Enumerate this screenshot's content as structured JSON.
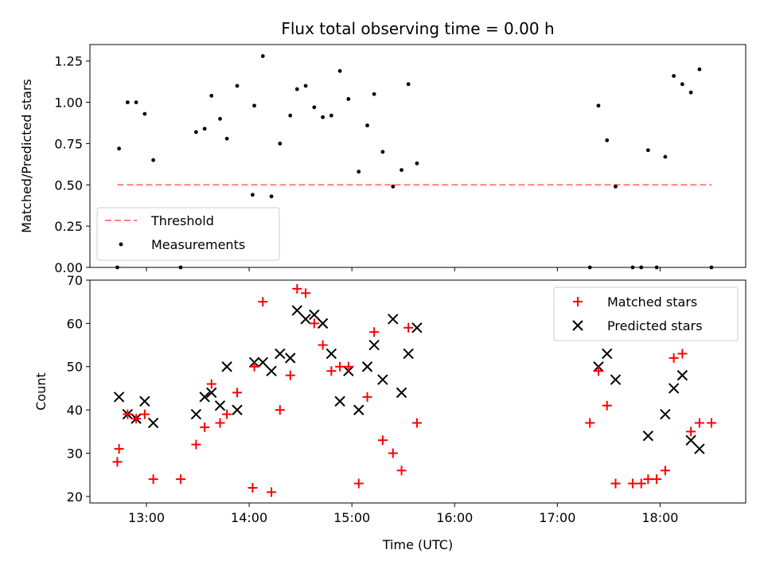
{
  "chart_data": [
    {
      "type": "scatter",
      "title": "Flux total observing time = 0.00 h",
      "ylabel": "Matched/Predicted stars",
      "xlabel": "",
      "xlim": [
        "12:27",
        "18:50"
      ],
      "ylim": [
        0,
        1.35
      ],
      "yticks": [
        "0.00",
        "0.25",
        "0.50",
        "0.75",
        "1.00",
        "1.25"
      ],
      "xticks": [
        "13:00",
        "14:00",
        "15:00",
        "16:00",
        "17:00",
        "18:00"
      ],
      "legend_position": "lower-left",
      "threshold": {
        "name": "Threshold",
        "value": 0.5,
        "x_range": [
          "12:43",
          "18:30"
        ],
        "color": "#ff7f7f",
        "style": "dashed"
      },
      "series": [
        {
          "name": "Measurements",
          "color": "#000000",
          "marker": "dot",
          "points": [
            [
              "12:43",
              0.0
            ],
            [
              "12:44",
              0.72
            ],
            [
              "12:49",
              1.0
            ],
            [
              "12:54",
              1.0
            ],
            [
              "12:59",
              0.93
            ],
            [
              "13:04",
              0.65
            ],
            [
              "13:20",
              0.0
            ],
            [
              "13:29",
              0.82
            ],
            [
              "13:34",
              0.84
            ],
            [
              "13:38",
              1.04
            ],
            [
              "13:43",
              0.9
            ],
            [
              "13:47",
              0.78
            ],
            [
              "13:53",
              1.1
            ],
            [
              "14:02",
              0.44
            ],
            [
              "14:03",
              0.98
            ],
            [
              "14:08",
              1.28
            ],
            [
              "14:13",
              0.43
            ],
            [
              "14:18",
              0.75
            ],
            [
              "14:24",
              0.92
            ],
            [
              "14:28",
              1.08
            ],
            [
              "14:33",
              1.1
            ],
            [
              "14:38",
              0.97
            ],
            [
              "14:43",
              0.91
            ],
            [
              "14:48",
              0.92
            ],
            [
              "14:53",
              1.19
            ],
            [
              "14:58",
              1.02
            ],
            [
              "15:04",
              0.58
            ],
            [
              "15:09",
              0.86
            ],
            [
              "15:13",
              1.05
            ],
            [
              "15:18",
              0.7
            ],
            [
              "15:24",
              0.49
            ],
            [
              "15:29",
              0.59
            ],
            [
              "15:33",
              1.11
            ],
            [
              "15:38",
              0.63
            ],
            [
              "17:19",
              0.0
            ],
            [
              "17:24",
              0.98
            ],
            [
              "17:29",
              0.77
            ],
            [
              "17:34",
              0.49
            ],
            [
              "17:44",
              0.0
            ],
            [
              "17:49",
              0.0
            ],
            [
              "17:53",
              0.71
            ],
            [
              "17:58",
              0.0
            ],
            [
              "18:03",
              0.67
            ],
            [
              "18:08",
              1.16
            ],
            [
              "18:13",
              1.11
            ],
            [
              "18:18",
              1.06
            ],
            [
              "18:23",
              1.2
            ],
            [
              "18:30",
              0.0
            ]
          ]
        }
      ]
    },
    {
      "type": "scatter",
      "title": "",
      "ylabel": "Count",
      "xlabel": "Time (UTC)",
      "xlim": [
        "12:27",
        "18:50"
      ],
      "ylim": [
        18.5,
        70
      ],
      "yticks": [
        "20",
        "30",
        "40",
        "50",
        "60",
        "70"
      ],
      "xticks": [
        "13:00",
        "14:00",
        "15:00",
        "16:00",
        "17:00",
        "18:00"
      ],
      "legend_position": "upper-right",
      "series": [
        {
          "name": "Matched stars",
          "color": "#ff0000",
          "marker": "plus",
          "points": [
            [
              "12:43",
              28
            ],
            [
              "12:44",
              31
            ],
            [
              "12:49",
              39
            ],
            [
              "12:54",
              38
            ],
            [
              "12:59",
              39
            ],
            [
              "13:04",
              24
            ],
            [
              "13:20",
              24
            ],
            [
              "13:29",
              32
            ],
            [
              "13:34",
              36
            ],
            [
              "13:38",
              46
            ],
            [
              "13:43",
              37
            ],
            [
              "13:47",
              39
            ],
            [
              "13:53",
              44
            ],
            [
              "14:02",
              22
            ],
            [
              "14:03",
              50
            ],
            [
              "14:08",
              65
            ],
            [
              "14:13",
              21
            ],
            [
              "14:18",
              40
            ],
            [
              "14:24",
              48
            ],
            [
              "14:28",
              68
            ],
            [
              "14:33",
              67
            ],
            [
              "14:38",
              60
            ],
            [
              "14:43",
              55
            ],
            [
              "14:48",
              49
            ],
            [
              "14:53",
              50
            ],
            [
              "14:58",
              50
            ],
            [
              "15:04",
              23
            ],
            [
              "15:09",
              43
            ],
            [
              "15:13",
              58
            ],
            [
              "15:18",
              33
            ],
            [
              "15:24",
              30
            ],
            [
              "15:29",
              26
            ],
            [
              "15:33",
              59
            ],
            [
              "15:38",
              37
            ],
            [
              "17:19",
              37
            ],
            [
              "17:24",
              49
            ],
            [
              "17:29",
              41
            ],
            [
              "17:34",
              23
            ],
            [
              "17:44",
              23
            ],
            [
              "17:49",
              23
            ],
            [
              "17:53",
              24
            ],
            [
              "17:58",
              24
            ],
            [
              "18:03",
              26
            ],
            [
              "18:08",
              52
            ],
            [
              "18:13",
              53
            ],
            [
              "18:18",
              35
            ],
            [
              "18:23",
              37
            ],
            [
              "18:30",
              37
            ]
          ]
        },
        {
          "name": "Predicted stars",
          "color": "#000000",
          "marker": "x",
          "points": [
            [
              "12:44",
              43
            ],
            [
              "12:49",
              39
            ],
            [
              "12:54",
              38
            ],
            [
              "12:59",
              42
            ],
            [
              "13:04",
              37
            ],
            [
              "13:29",
              39
            ],
            [
              "13:34",
              43
            ],
            [
              "13:38",
              44
            ],
            [
              "13:43",
              41
            ],
            [
              "13:47",
              50
            ],
            [
              "13:53",
              40
            ],
            [
              "14:03",
              51
            ],
            [
              "14:08",
              51
            ],
            [
              "14:13",
              49
            ],
            [
              "14:18",
              53
            ],
            [
              "14:24",
              52
            ],
            [
              "14:28",
              63
            ],
            [
              "14:33",
              61
            ],
            [
              "14:38",
              62
            ],
            [
              "14:43",
              60
            ],
            [
              "14:48",
              53
            ],
            [
              "14:53",
              42
            ],
            [
              "14:58",
              49
            ],
            [
              "15:04",
              40
            ],
            [
              "15:09",
              50
            ],
            [
              "15:13",
              55
            ],
            [
              "15:18",
              47
            ],
            [
              "15:24",
              61
            ],
            [
              "15:29",
              44
            ],
            [
              "15:33",
              53
            ],
            [
              "15:38",
              59
            ],
            [
              "17:24",
              50
            ],
            [
              "17:29",
              53
            ],
            [
              "17:34",
              47
            ],
            [
              "17:53",
              34
            ],
            [
              "18:03",
              39
            ],
            [
              "18:08",
              45
            ],
            [
              "18:13",
              48
            ],
            [
              "18:18",
              33
            ],
            [
              "18:23",
              31
            ]
          ]
        }
      ]
    }
  ]
}
